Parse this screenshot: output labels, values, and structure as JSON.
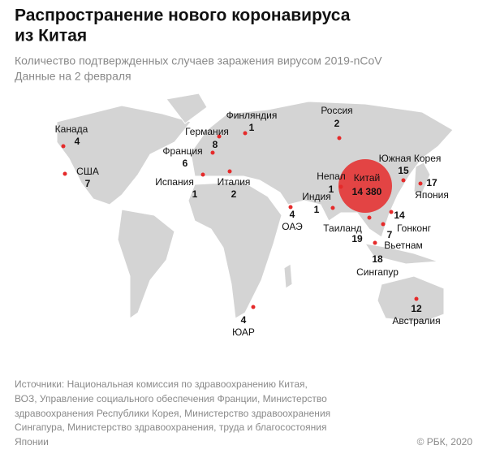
{
  "header": {
    "title": [
      "Распространение нового коронавируса",
      "из Китая"
    ],
    "subtitle": [
      "Количество подтвержденных случаев заражения вирусом 2019-nCoV",
      "Данные на 2 февраля"
    ]
  },
  "countries": [
    {
      "name": "Канада",
      "cases": 4
    },
    {
      "name": "США",
      "cases": 7
    },
    {
      "name": "Финляндия",
      "cases": 1
    },
    {
      "name": "Россия",
      "cases": 2
    },
    {
      "name": "Германия",
      "cases": 8
    },
    {
      "name": "Франция",
      "cases": 6
    },
    {
      "name": "Испания",
      "cases": 1
    },
    {
      "name": "Италия",
      "cases": 2
    },
    {
      "name": "ОАЭ",
      "cases": 4
    },
    {
      "name": "Непал",
      "cases": 1
    },
    {
      "name": "Индия",
      "cases": 1
    },
    {
      "name": "Китай",
      "cases": 14380,
      "cases_label": "14 380"
    },
    {
      "name": "Южная Корея",
      "cases": 15
    },
    {
      "name": "Япония",
      "cases": 17
    },
    {
      "name": "Таиланд",
      "cases": 19
    },
    {
      "name": "Гонконг",
      "cases": 14
    },
    {
      "name": "Вьетнам",
      "cases": 7
    },
    {
      "name": "Сингапур",
      "cases": 18
    },
    {
      "name": "Австралия",
      "cases": 12
    },
    {
      "name": "ЮАР",
      "cases": 4
    }
  ],
  "source": [
    "Источники: Национальная комиссия по здравоохранению Китая,",
    "ВОЗ, Управление социального обеспечения Франции, Министерство",
    "здравоохранения Республики Корея, Министерство здравоохранения",
    "Сингапура, Министерство здравоохранения, труда и благосостояния",
    "Японии"
  ],
  "copyright": "© РБК, 2020"
}
